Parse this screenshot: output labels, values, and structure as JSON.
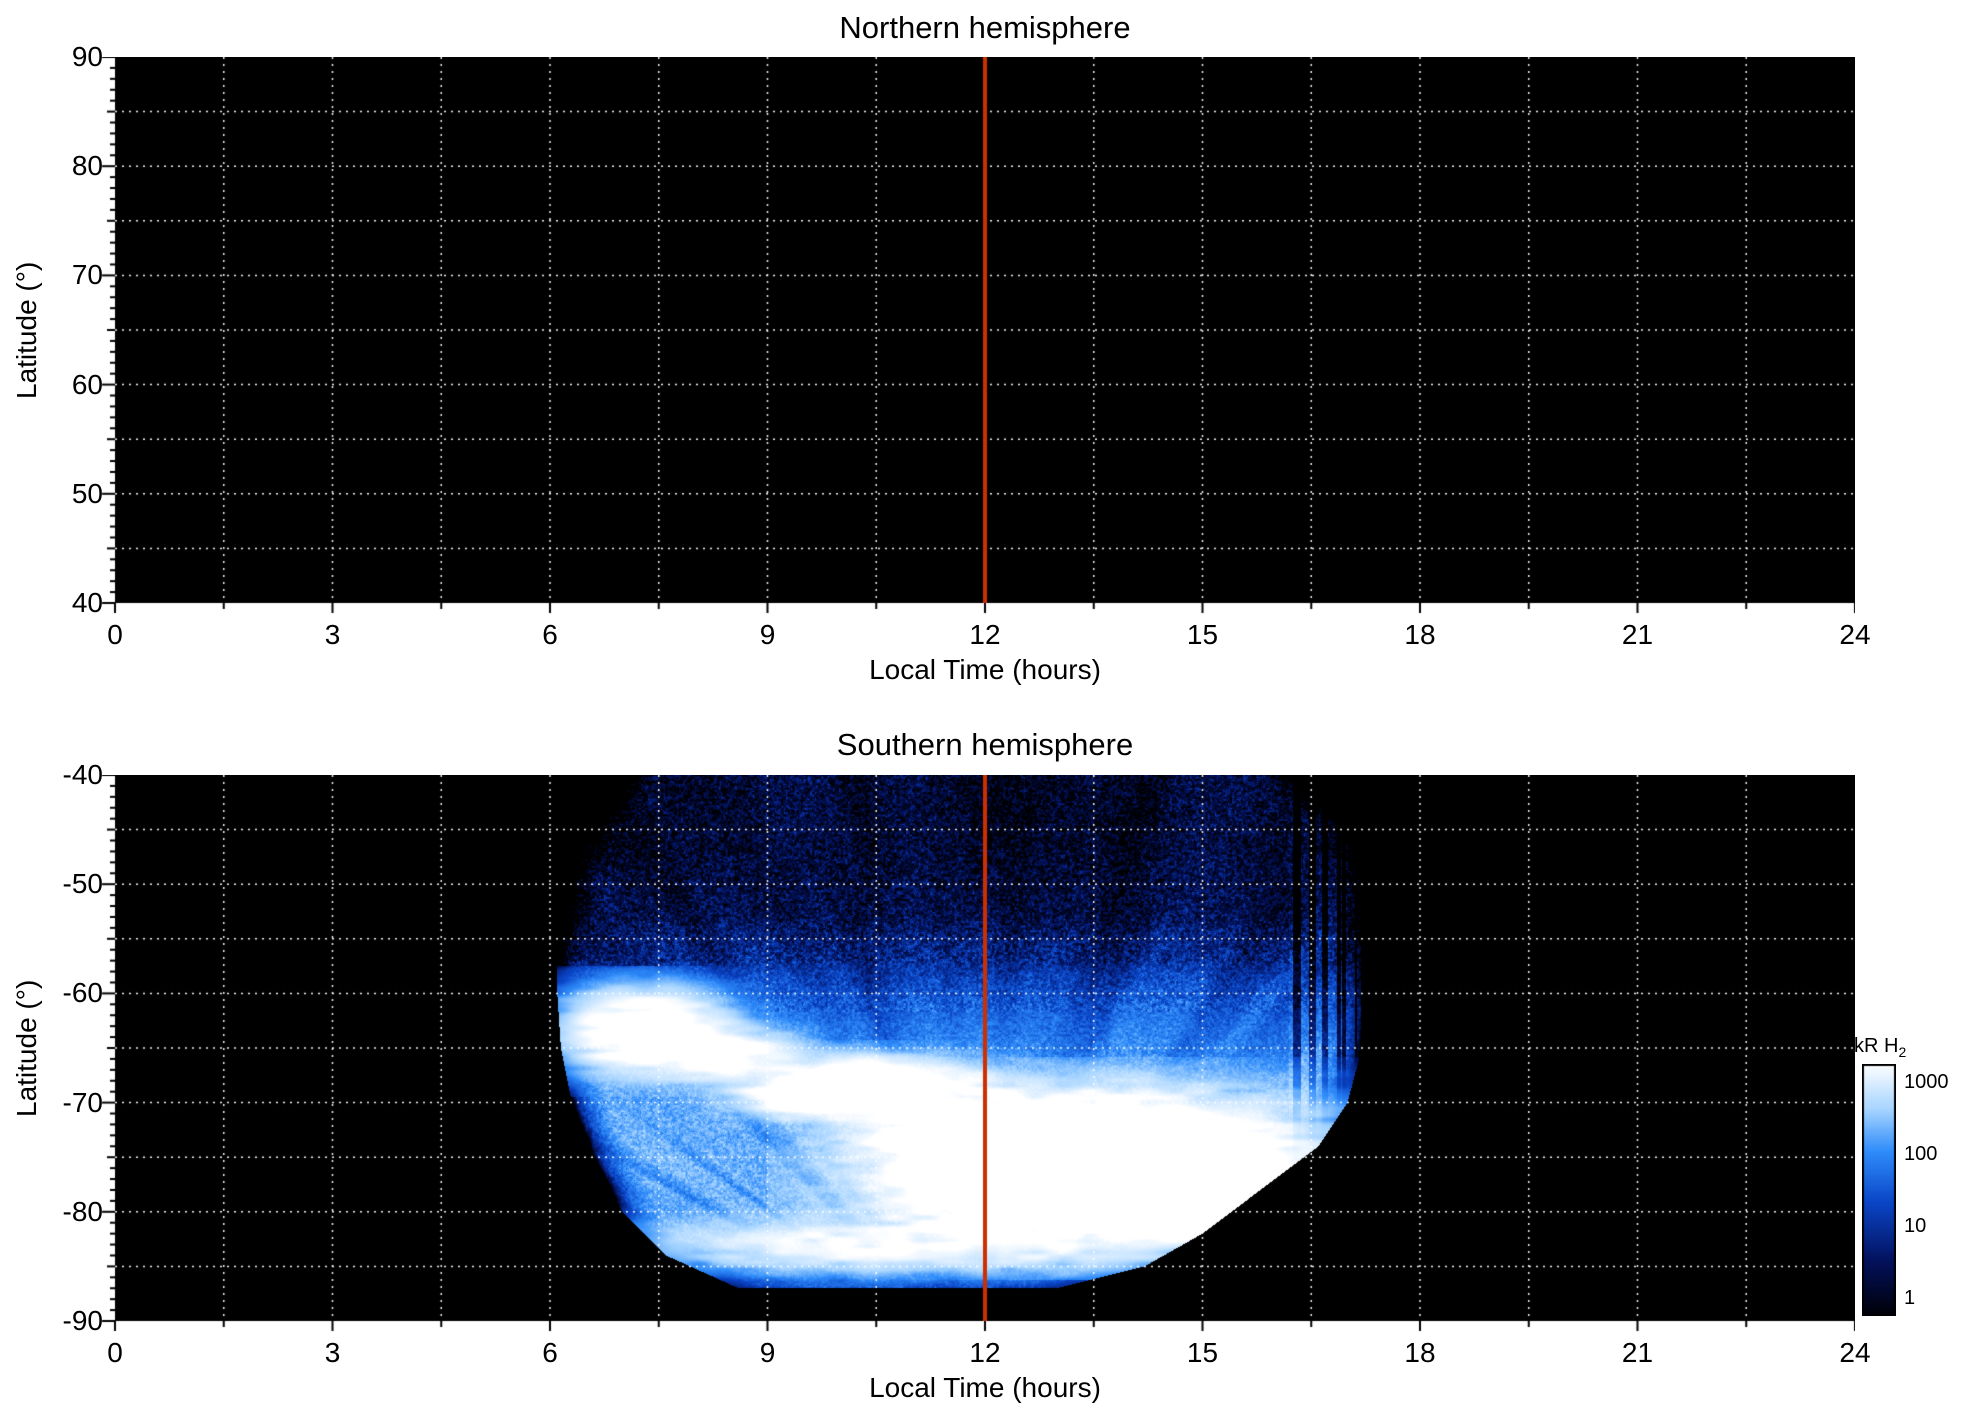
{
  "figure": {
    "background": "#ffffff",
    "plot_bg": "#000000",
    "grid_color": "#ffffff",
    "marker_line_color": "#cc2f00",
    "text_color": "#000000"
  },
  "colorbar": {
    "label_main": "kR H",
    "label_sub": "2",
    "ticks": [
      "1000",
      "100",
      "10",
      "1"
    ],
    "scale": "log",
    "value_range_kR": [
      1,
      1000
    ],
    "colormap_stops": [
      [
        0.0,
        "#000006"
      ],
      [
        0.22,
        "#03125f"
      ],
      [
        0.45,
        "#0a46c8"
      ],
      [
        0.65,
        "#2f8cfa"
      ],
      [
        0.82,
        "#a6d4ff"
      ],
      [
        1.0,
        "#ffffff"
      ]
    ]
  },
  "chart_data": [
    {
      "type": "heatmap",
      "title": "Northern hemisphere",
      "xlabel": "Local Time (hours)",
      "ylabel": "Latitude (°)",
      "xlim": [
        0,
        24
      ],
      "ylim": [
        40,
        90
      ],
      "xticks": [
        "0",
        "3",
        "6",
        "9",
        "12",
        "15",
        "18",
        "21",
        "24"
      ],
      "yticks": [
        "90",
        "80",
        "70",
        "60",
        "50",
        "40"
      ],
      "grid": {
        "style": "dotted",
        "color": "white",
        "x_spacing_hours": 1.5,
        "y_spacing_deg": 5
      },
      "marker_line_x": 12,
      "coverage": "none — panel contains no emission data (entirely black)"
    },
    {
      "type": "heatmap",
      "title": "Southern hemisphere",
      "xlabel": "Local Time (hours)",
      "ylabel": "Latitude (°)",
      "xlim": [
        0,
        24
      ],
      "ylim": [
        -90,
        -40
      ],
      "xticks": [
        "0",
        "3",
        "6",
        "9",
        "12",
        "15",
        "18",
        "21",
        "24"
      ],
      "yticks": [
        "-40",
        "-50",
        "-60",
        "-70",
        "-80",
        "-90"
      ],
      "grid": {
        "style": "dotted",
        "color": "white",
        "x_spacing_hours": 1.5,
        "y_spacing_deg": 5
      },
      "marker_line_x": 12,
      "emission": {
        "units": "kR H2",
        "description": "Swath of H2 auroral emission observed between ~06:00 and ~17:30 local time; speckled faint (~1-10 kR) emission from -40° to about -58°, brightening to a broad 100-1000 kR auroral band between about -60° and -86°, with saturated white patches near 7h/-64°, 10.5h/-68° and a large one from 12h-15h at -72° to -80°; striated vertical fringe near 16.5h-17.4h.",
        "lat_floor": -87,
        "streak_center_x": 11.8,
        "streak_center_lat": -93,
        "left_edge": [
          [
            -87,
            8.6
          ],
          [
            -84,
            7.6
          ],
          [
            -80,
            7.0
          ],
          [
            -75,
            6.6
          ],
          [
            -70,
            6.3
          ],
          [
            -65,
            6.15
          ],
          [
            -60,
            6.1
          ],
          [
            -55,
            6.1
          ],
          [
            -50,
            6.2
          ],
          [
            -45,
            6.45
          ],
          [
            -40,
            7.0
          ]
        ],
        "right_edge": [
          [
            -87,
            13.0
          ],
          [
            -85,
            14.2
          ],
          [
            -82,
            15.0
          ],
          [
            -78,
            15.8
          ],
          [
            -74,
            16.6
          ],
          [
            -70,
            17.0
          ],
          [
            -65,
            17.2
          ],
          [
            -60,
            17.3
          ],
          [
            -55,
            17.35
          ],
          [
            -48,
            17.3
          ],
          [
            -44,
            17.0
          ],
          [
            -40,
            16.35
          ]
        ],
        "base_profile": [
          [
            -87,
            8
          ],
          [
            -85,
            30
          ],
          [
            -82,
            90
          ],
          [
            -78,
            130
          ],
          [
            -70,
            120
          ],
          [
            -64,
            60
          ],
          [
            -60,
            25
          ],
          [
            -57,
            8
          ],
          [
            -53,
            3
          ],
          [
            -46,
            2
          ],
          [
            -40,
            2.2
          ]
        ],
        "bright_spots": [
          {
            "x": 13.5,
            "lat": -76.0,
            "sx": 1.5,
            "slat": 3.4,
            "kR": 5000
          },
          {
            "x": 12.2,
            "lat": -73.0,
            "sx": 0.9,
            "slat": 1.6,
            "kR": 2500
          },
          {
            "x": 10.4,
            "lat": -68.5,
            "sx": 0.85,
            "slat": 1.4,
            "kR": 2600
          },
          {
            "x": 9.6,
            "lat": -69.5,
            "sx": 0.5,
            "slat": 1.0,
            "kR": 1500
          },
          {
            "x": 7.3,
            "lat": -63.5,
            "sx": 0.6,
            "slat": 2.0,
            "kR": 2200
          },
          {
            "x": 8.4,
            "lat": -65.5,
            "sx": 0.55,
            "slat": 1.3,
            "kR": 1300
          },
          {
            "x": 10.6,
            "lat": -83.0,
            "sx": 1.8,
            "slat": 1.4,
            "kR": 900
          },
          {
            "x": 14.9,
            "lat": -78.5,
            "sx": 0.9,
            "slat": 1.8,
            "kR": 2600
          }
        ]
      }
    }
  ]
}
